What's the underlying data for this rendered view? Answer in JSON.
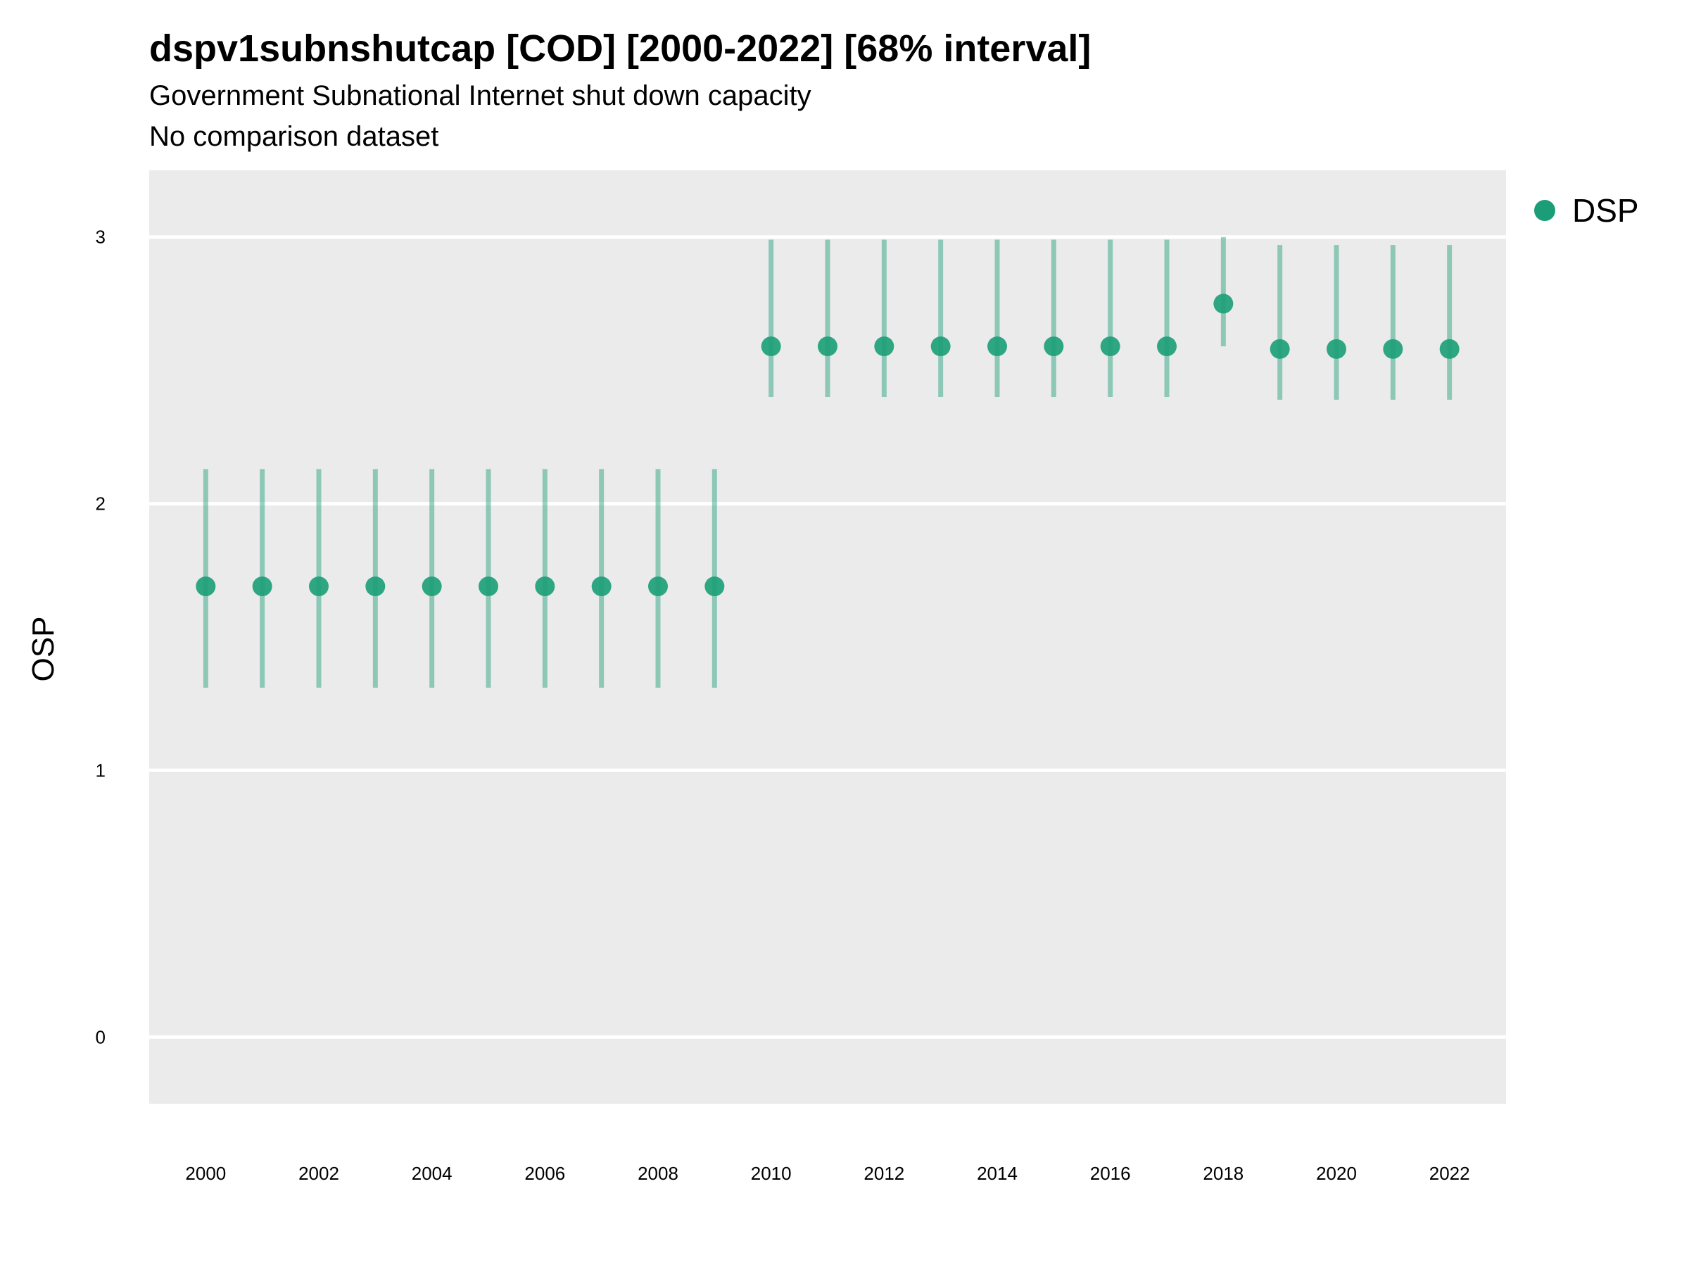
{
  "chart_data": {
    "type": "scatter",
    "title": "dspv1subnshutcap [COD] [2000-2022] [68% interval]",
    "subtitle": "Government Subnational Internet shut down capacity",
    "caption": "No comparison dataset",
    "ylabel": "OSP",
    "xlabel": "",
    "xlim": [
      1999,
      2023
    ],
    "ylim": [
      -0.25,
      3.25
    ],
    "yticks": [
      0,
      1,
      2,
      3
    ],
    "xticks": [
      2000,
      2002,
      2004,
      2006,
      2008,
      2010,
      2012,
      2014,
      2016,
      2018,
      2020,
      2022
    ],
    "grid": true,
    "legend_position": "right",
    "series": [
      {
        "name": "DSP",
        "color": "#1b9e77",
        "x": [
          2000,
          2001,
          2002,
          2003,
          2004,
          2005,
          2006,
          2007,
          2008,
          2009,
          2010,
          2011,
          2012,
          2013,
          2014,
          2015,
          2016,
          2017,
          2018,
          2019,
          2020,
          2021,
          2022
        ],
        "y": [
          1.69,
          1.69,
          1.69,
          1.69,
          1.69,
          1.69,
          1.69,
          1.69,
          1.69,
          1.69,
          2.59,
          2.59,
          2.59,
          2.59,
          2.59,
          2.59,
          2.59,
          2.59,
          2.75,
          2.58,
          2.58,
          2.58,
          2.58
        ],
        "lower": [
          1.31,
          1.31,
          1.31,
          1.31,
          1.31,
          1.31,
          1.31,
          1.31,
          1.31,
          1.31,
          2.4,
          2.4,
          2.4,
          2.4,
          2.4,
          2.4,
          2.4,
          2.4,
          2.59,
          2.39,
          2.39,
          2.39,
          2.39
        ],
        "upper": [
          2.13,
          2.13,
          2.13,
          2.13,
          2.13,
          2.13,
          2.13,
          2.13,
          2.13,
          2.13,
          2.99,
          2.99,
          2.99,
          2.99,
          2.99,
          2.99,
          2.99,
          2.99,
          3.0,
          2.97,
          2.97,
          2.97,
          2.97
        ]
      }
    ]
  }
}
